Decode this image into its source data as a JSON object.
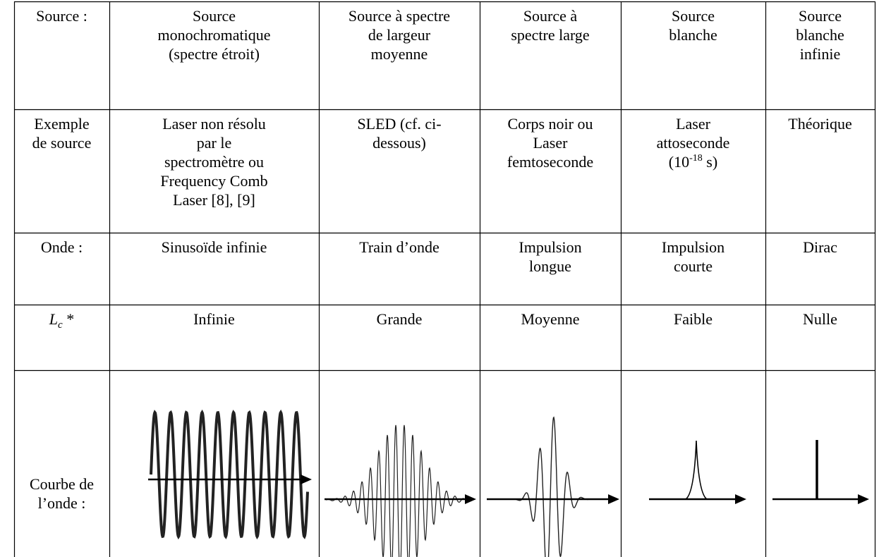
{
  "table": {
    "rows": [
      [
        [
          "Source :"
        ],
        [
          "Source",
          "monochromatique",
          "(spectre étroit)"
        ],
        [
          "Source à spectre",
          "de largeur",
          "moyenne"
        ],
        [
          "Source à",
          "spectre large"
        ],
        [
          "Source",
          "blanche"
        ],
        [
          "Source",
          "blanche",
          "infinie"
        ]
      ],
      [
        [
          "Exemple",
          "de source"
        ],
        [
          "Laser non résolu",
          "par le",
          "spectromètre ou",
          "Frequency Comb",
          "Laser [8], [9]"
        ],
        [
          "SLED (cf. ci-",
          "dessous)"
        ],
        [
          "Corps noir ou",
          "Laser",
          "femtoseconde"
        ],
        [
          "Laser",
          "attoseconde",
          {
            "text": "(10",
            "sup": "-18",
            "tail": " s)"
          }
        ],
        [
          "Théorique"
        ]
      ],
      [
        [
          "Onde :"
        ],
        [
          "Sinusoïde infinie"
        ],
        [
          "Train d’onde"
        ],
        [
          "Impulsion",
          "longue"
        ],
        [
          "Impulsion",
          "courte"
        ],
        [
          "Dirac"
        ]
      ],
      [
        [
          {
            "text": "L",
            "sub": "c",
            "tail": " *"
          }
        ],
        [
          "Infinie"
        ],
        [
          "Grande"
        ],
        [
          "Moyenne"
        ],
        [
          "Faible"
        ],
        [
          "Nulle"
        ]
      ],
      [
        [
          "Courbe de",
          "l’onde :"
        ]
      ]
    ]
  }
}
